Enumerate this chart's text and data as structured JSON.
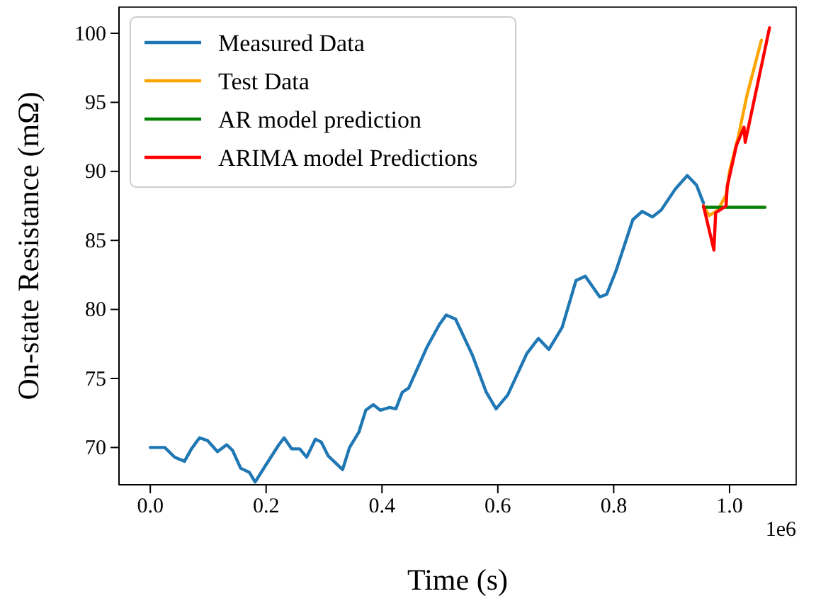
{
  "chart_data": {
    "type": "line",
    "xlabel": "Time (s)",
    "ylabel": "On-state Resistance (mΩ)",
    "xlim": [
      -0.054,
      1.115
    ],
    "ylim": [
      67.3,
      101.9
    ],
    "xticks": [
      {
        "value": 0,
        "label": "0.0"
      },
      0.2,
      0.4,
      0.6,
      0.8,
      {
        "value": 1,
        "label": "1.0"
      }
    ],
    "yticks": [
      70,
      75,
      80,
      85,
      90,
      95,
      100
    ],
    "annotations": [
      "1e6"
    ],
    "legend": "top left",
    "grid": false,
    "series": [
      {
        "name": "Measured Data",
        "color": "#1f77b4",
        "x": [
          0,
          0.025,
          0.042,
          0.059,
          0.071,
          0.085,
          0.099,
          0.116,
          0.132,
          0.142,
          0.156,
          0.171,
          0.181,
          0.199,
          0.222,
          0.231,
          0.244,
          0.258,
          0.27,
          0.285,
          0.295,
          0.307,
          0.332,
          0.344,
          0.36,
          0.372,
          0.385,
          0.397,
          0.413,
          0.424,
          0.435,
          0.446,
          0.478,
          0.499,
          0.511,
          0.527,
          0.556,
          0.58,
          0.597,
          0.617,
          0.65,
          0.67,
          0.688,
          0.711,
          0.735,
          0.751,
          0.776,
          0.788,
          0.804,
          0.833,
          0.849,
          0.867,
          0.882,
          0.906,
          0.927,
          0.943,
          0.955
        ],
        "values": [
          70.0,
          70.0,
          69.3,
          69.0,
          69.9,
          70.7,
          70.5,
          69.7,
          70.2,
          69.8,
          68.5,
          68.2,
          67.5,
          68.7,
          70.2,
          70.7,
          69.9,
          69.9,
          69.3,
          70.6,
          70.4,
          69.4,
          68.4,
          70.0,
          71.1,
          72.7,
          73.1,
          72.7,
          72.9,
          72.8,
          74.0,
          74.3,
          77.3,
          78.9,
          79.6,
          79.3,
          76.7,
          74.0,
          72.8,
          73.8,
          76.8,
          77.9,
          77.1,
          78.7,
          82.1,
          82.4,
          80.9,
          81.1,
          82.8,
          86.5,
          87.1,
          86.7,
          87.2,
          88.7,
          89.7,
          89.0,
          87.7
        ]
      },
      {
        "name": "Test Data",
        "color": "#ffa500",
        "x": [
          0.955,
          0.965,
          0.98,
          0.994,
          1.0,
          1.015,
          1.03,
          1.055
        ],
        "values": [
          87.5,
          86.8,
          87.2,
          88.3,
          90.0,
          92.5,
          95.5,
          99.5
        ]
      },
      {
        "name": "AR model prediction",
        "color": "#008000",
        "x": [
          0.955,
          1.061
        ],
        "values": [
          87.4,
          87.4
        ]
      },
      {
        "name": "ARIMA model Predictions",
        "color": "#ff0000",
        "x": [
          0.955,
          0.973,
          0.976,
          0.994,
          0.996,
          1.012,
          1.025,
          1.027,
          1.069
        ],
        "values": [
          87.5,
          84.3,
          87.0,
          87.5,
          88.9,
          91.9,
          93.2,
          92.1,
          100.4
        ]
      }
    ]
  }
}
